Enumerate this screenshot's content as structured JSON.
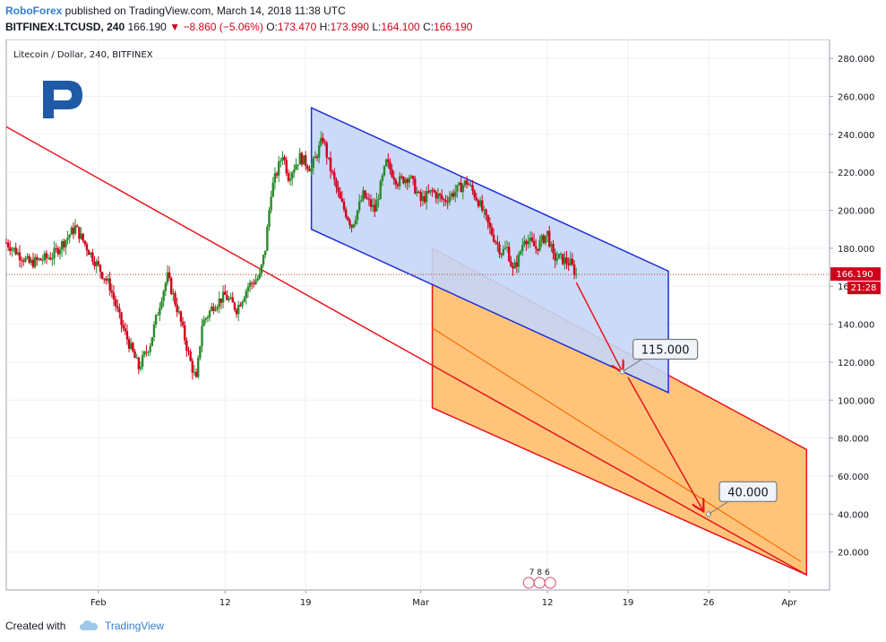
{
  "header": {
    "publisher": "RoboForex",
    "published_text": " published on TradingView.com, March 14, 2018 11:38 UTC",
    "symbol": "BITFINEX:LTCUSD, 240",
    "price": "166.190",
    "change": "−8.860 (−5.06%)",
    "o_label": "O:",
    "o_value": "173.470",
    "h_label": "H:",
    "h_value": "173.990",
    "l_label": "L:",
    "l_value": "164.100",
    "c_label": "C:",
    "c_value": "166.190"
  },
  "footer": {
    "created_with": "Created with",
    "tradingview": "TradingView"
  },
  "colors": {
    "up": "#2b8a2b",
    "down": "#d0021b",
    "blue_channel_fill": "#c5d6f7",
    "blue_channel_stroke": "#1e2fd6",
    "orange_channel_fill": "#ffbe6b",
    "orange_channel_stroke": "#e8141c",
    "trendline": "#e8141c",
    "price_line": "#c0392b"
  },
  "chart_data": {
    "type": "candlestick",
    "title": "Litecoin / Dollar, 240, BITFINEX",
    "y_axis": {
      "min": 0,
      "max": 290,
      "ticks": [
        "20.000",
        "40.000",
        "60.000",
        "80.000",
        "100.000",
        "120.000",
        "140.000",
        "160.000",
        "180.000",
        "200.000",
        "220.000",
        "240.000",
        "260.000",
        "280.000"
      ]
    },
    "x_axis": {
      "ticks": [
        {
          "label": "Feb",
          "date": "2018-02-01"
        },
        {
          "label": "12",
          "date": "2018-02-12"
        },
        {
          "label": "19",
          "date": "2018-02-19"
        },
        {
          "label": "Mar",
          "date": "2018-03-01"
        },
        {
          "label": "12",
          "date": "2018-03-12"
        },
        {
          "label": "19",
          "date": "2018-03-19"
        },
        {
          "label": "26",
          "date": "2018-03-26"
        },
        {
          "label": "Apr",
          "date": "2018-04-02"
        }
      ]
    },
    "price_anchors": [
      {
        "date": "2018-01-24T00:00",
        "price": 183
      },
      {
        "date": "2018-01-26T00:00",
        "price": 172
      },
      {
        "date": "2018-01-28T00:00",
        "price": 176
      },
      {
        "date": "2018-01-30T00:00",
        "price": 191
      },
      {
        "date": "2018-02-01T00:00",
        "price": 170
      },
      {
        "date": "2018-02-02T00:00",
        "price": 160
      },
      {
        "date": "2018-02-03T00:00",
        "price": 140
      },
      {
        "date": "2018-02-04T12:00",
        "price": 117
      },
      {
        "date": "2018-02-05T12:00",
        "price": 130
      },
      {
        "date": "2018-02-06T12:00",
        "price": 155
      },
      {
        "date": "2018-02-07T00:00",
        "price": 165
      },
      {
        "date": "2018-02-08T00:00",
        "price": 145
      },
      {
        "date": "2018-02-09T00:00",
        "price": 120
      },
      {
        "date": "2018-02-09T12:00",
        "price": 110
      },
      {
        "date": "2018-02-10T00:00",
        "price": 140
      },
      {
        "date": "2018-02-11T00:00",
        "price": 150
      },
      {
        "date": "2018-02-12T00:00",
        "price": 155
      },
      {
        "date": "2018-02-13T00:00",
        "price": 148
      },
      {
        "date": "2018-02-14T00:00",
        "price": 160
      },
      {
        "date": "2018-02-15T00:00",
        "price": 165
      },
      {
        "date": "2018-02-15T12:00",
        "price": 180
      },
      {
        "date": "2018-02-16T00:00",
        "price": 210
      },
      {
        "date": "2018-02-17T00:00",
        "price": 230
      },
      {
        "date": "2018-02-17T12:00",
        "price": 218
      },
      {
        "date": "2018-02-18T12:00",
        "price": 228
      },
      {
        "date": "2018-02-19T12:00",
        "price": 222
      },
      {
        "date": "2018-02-20T12:00",
        "price": 238
      },
      {
        "date": "2018-02-21T00:00",
        "price": 225
      },
      {
        "date": "2018-02-22T00:00",
        "price": 205
      },
      {
        "date": "2018-02-23T00:00",
        "price": 192
      },
      {
        "date": "2018-02-24T00:00",
        "price": 208
      },
      {
        "date": "2018-02-25T00:00",
        "price": 200
      },
      {
        "date": "2018-02-26T00:00",
        "price": 225
      },
      {
        "date": "2018-02-27T00:00",
        "price": 215
      },
      {
        "date": "2018-02-28T00:00",
        "price": 218
      },
      {
        "date": "2018-03-01T00:00",
        "price": 205
      },
      {
        "date": "2018-03-02T00:00",
        "price": 210
      },
      {
        "date": "2018-03-03T00:00",
        "price": 205
      },
      {
        "date": "2018-03-04T00:00",
        "price": 210
      },
      {
        "date": "2018-03-05T00:00",
        "price": 215
      },
      {
        "date": "2018-03-06T00:00",
        "price": 205
      },
      {
        "date": "2018-03-07T00:00",
        "price": 190
      },
      {
        "date": "2018-03-08T00:00",
        "price": 178
      },
      {
        "date": "2018-03-08T12:00",
        "price": 180
      },
      {
        "date": "2018-03-09T00:00",
        "price": 168
      },
      {
        "date": "2018-03-09T12:00",
        "price": 175
      },
      {
        "date": "2018-03-10T00:00",
        "price": 186
      },
      {
        "date": "2018-03-11T00:00",
        "price": 180
      },
      {
        "date": "2018-03-12T00:00",
        "price": 188
      },
      {
        "date": "2018-03-12T12:00",
        "price": 175
      },
      {
        "date": "2018-03-13T00:00",
        "price": 175
      },
      {
        "date": "2018-03-14T00:00",
        "price": 172
      },
      {
        "date": "2018-03-14T12:00",
        "price": 166
      }
    ],
    "last_price": {
      "value": "166.190",
      "countdown": "21:28"
    },
    "blue_channel": {
      "upper": [
        {
          "date": "2018-02-19T12:00",
          "price": 254
        },
        {
          "date": "2018-03-22T12:00",
          "price": 168
        }
      ],
      "lower": [
        {
          "date": "2018-02-19T12:00",
          "price": 190
        },
        {
          "date": "2018-03-22T12:00",
          "price": 104
        }
      ]
    },
    "orange_channel": {
      "upper": [
        {
          "date": "2018-03-02T00:00",
          "price": 180
        },
        {
          "date": "2018-04-03T12:00",
          "price": 74
        }
      ],
      "lower": [
        {
          "date": "2018-03-02T00:00",
          "price": 96
        },
        {
          "date": "2018-04-03T12:00",
          "price": 8
        }
      ],
      "midline": [
        {
          "date": "2018-03-02T00:00",
          "price": 138
        },
        {
          "date": "2018-04-03T00:00",
          "price": 15
        }
      ]
    },
    "trendline": [
      {
        "date": "2018-01-24T00:00",
        "price": 244
      },
      {
        "date": "2018-04-03T12:00",
        "price": 8
      }
    ],
    "projection_arrows": [
      {
        "from": {
          "date": "2018-03-14T12:00",
          "price": 162
        },
        "to": {
          "date": "2018-03-18T12:00",
          "price": 115
        }
      },
      {
        "from": {
          "date": "2018-03-19T00:00",
          "price": 112
        },
        "to": {
          "date": "2018-03-25T12:00",
          "price": 42
        }
      }
    ],
    "targets": [
      {
        "label": "115.000",
        "date": "2018-03-18T12:00",
        "price": 115
      },
      {
        "label": "40.000",
        "date": "2018-03-26T00:00",
        "price": 40
      }
    ],
    "watermark_text": "R",
    "events_badge": "7 8 6"
  }
}
